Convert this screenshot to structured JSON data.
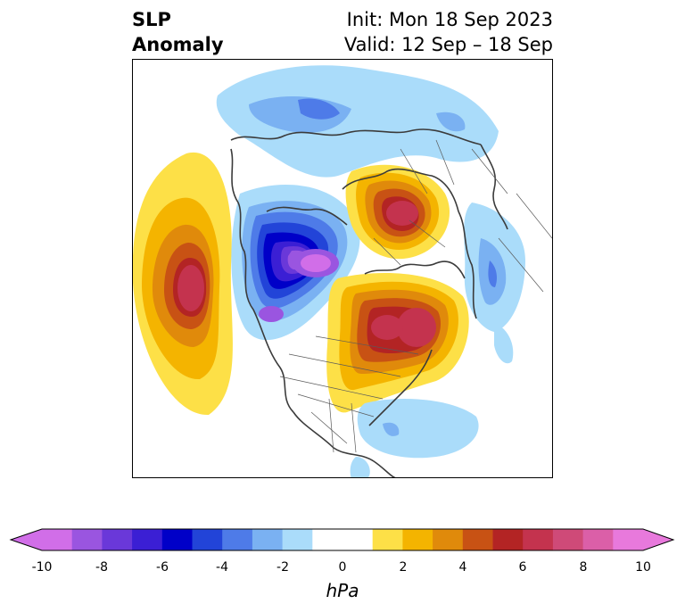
{
  "title": {
    "left_line1": "SLP",
    "left_line2": "Anomaly",
    "right_line1": "Init: Mon 18 Sep 2023",
    "right_line2": "Valid: 12 Sep – 18 Sep"
  },
  "colorbar": {
    "unit": "hPa",
    "ticks": [
      "-10",
      "-8",
      "-6",
      "-4",
      "-2",
      "0",
      "2",
      "4",
      "6",
      "8",
      "10"
    ],
    "under_color": "#d16ee8",
    "over_color": "#e879dc",
    "colors": [
      "#d16ee8",
      "#9a55e0",
      "#6a38d9",
      "#3b1fd4",
      "#0000c8",
      "#2244d8",
      "#4e7be8",
      "#7ab1f2",
      "#aadcfa",
      "#ffffff",
      "#ffffff",
      "#fde047",
      "#f4b400",
      "#e08a0b",
      "#c85214",
      "#b32424",
      "#c4334e",
      "#cf4a78",
      "#db5fa8",
      "#e879dc"
    ]
  },
  "map": {
    "projection": "north-polar-stereographic",
    "field": "sea-level-pressure-anomaly",
    "features": [
      {
        "name": "pacific-high-anomaly",
        "peak": 7
      },
      {
        "name": "canada-low-anomaly",
        "peak": -10
      },
      {
        "name": "scandinavia-high-anomaly",
        "peak": 7
      },
      {
        "name": "greenland-atlantic-high-anomaly",
        "peak": 7
      },
      {
        "name": "siberia-low-anomaly",
        "peak": -3
      },
      {
        "name": "north-atlantic-low-anomaly",
        "peak": -3
      },
      {
        "name": "east-asia-low-anomaly",
        "peak": -2
      }
    ]
  }
}
